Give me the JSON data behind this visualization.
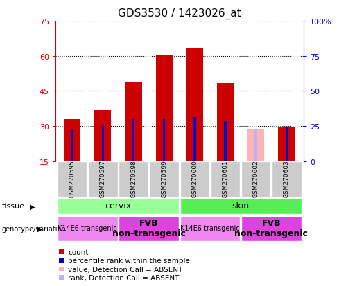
{
  "title": "GDS3530 / 1423026_at",
  "samples": [
    "GSM270595",
    "GSM270597",
    "GSM270598",
    "GSM270599",
    "GSM270600",
    "GSM270601",
    "GSM270602",
    "GSM270603"
  ],
  "count_values": [
    33.0,
    37.0,
    49.0,
    60.5,
    63.5,
    48.5,
    null,
    29.5
  ],
  "rank_values": [
    29.0,
    30.5,
    33.0,
    33.0,
    34.0,
    32.0,
    null,
    29.5
  ],
  "absent_count_values": [
    null,
    null,
    null,
    null,
    null,
    null,
    28.5,
    null
  ],
  "absent_rank_values": [
    null,
    null,
    null,
    null,
    null,
    null,
    29.0,
    null
  ],
  "ylim_left": [
    15,
    75
  ],
  "ylim_right": [
    0,
    100
  ],
  "yticks_left": [
    15,
    30,
    45,
    60,
    75
  ],
  "yticks_right": [
    0,
    25,
    50,
    75,
    100
  ],
  "yticklabels_right": [
    "0",
    "25",
    "50",
    "75",
    "100%"
  ],
  "bar_width": 0.55,
  "rank_bar_width": 0.08,
  "colors": {
    "count_bar": "#cc0000",
    "rank_bar": "#0000cc",
    "absent_count_bar": "#ffb3b3",
    "absent_rank_bar": "#b3b3ff",
    "sample_bg": "#cccccc",
    "tissue_cervix": "#99ff99",
    "tissue_skin": "#55ee55",
    "genotype_k14": "#ee88ee",
    "genotype_fvb": "#dd44dd",
    "text_red": "#cc0000",
    "text_blue": "#0000cc",
    "white": "#ffffff",
    "black": "#000000"
  },
  "tissue_groups": [
    {
      "label": "cervix",
      "start": 0,
      "end": 3,
      "color": "#99ff99"
    },
    {
      "label": "skin",
      "start": 4,
      "end": 7,
      "color": "#55ee55"
    }
  ],
  "genotype_groups": [
    {
      "label": "K14E6 transgenic",
      "start": 0,
      "end": 1,
      "color": "#ee88ee",
      "fontsize": 7,
      "bold": false
    },
    {
      "label": "FVB\nnon-transgenic",
      "start": 2,
      "end": 3,
      "color": "#dd44dd",
      "fontsize": 9,
      "bold": true
    },
    {
      "label": "K14E6 transgenic",
      "start": 4,
      "end": 5,
      "color": "#ee88ee",
      "fontsize": 7,
      "bold": false
    },
    {
      "label": "FVB\nnon-transgenic",
      "start": 6,
      "end": 7,
      "color": "#dd44dd",
      "fontsize": 9,
      "bold": true
    }
  ],
  "legend_items": [
    {
      "color": "#cc0000",
      "label": "count"
    },
    {
      "color": "#0000cc",
      "label": "percentile rank within the sample"
    },
    {
      "color": "#ffb3b3",
      "label": "value, Detection Call = ABSENT"
    },
    {
      "color": "#b3b3ff",
      "label": "rank, Detection Call = ABSENT"
    }
  ]
}
